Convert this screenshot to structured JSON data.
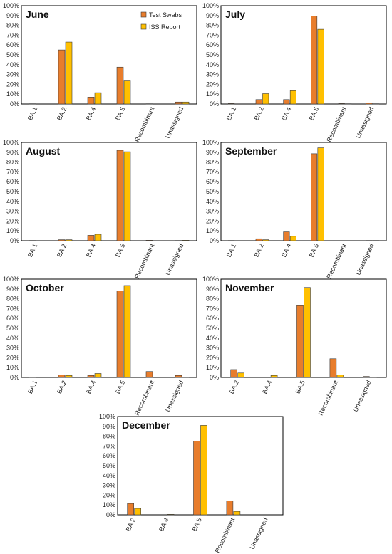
{
  "colors": {
    "test_swabs": "#E87D2C",
    "iss_report": "#FFC000",
    "bar_stroke": "#3a3a3a",
    "frame": "#000000"
  },
  "chart_data": [
    {
      "type": "bar",
      "title": "June",
      "ylim": [
        0,
        100
      ],
      "y_ticks": [
        "0%",
        "10%",
        "20%",
        "30%",
        "40%",
        "50%",
        "60%",
        "70%",
        "80%",
        "90%",
        "100%"
      ],
      "categories": [
        "BA.1",
        "BA.2",
        "BA.4",
        "BA.5",
        "Recombinant",
        "Unassigned"
      ],
      "series": [
        {
          "name": "Test Swabs",
          "values": [
            0.3,
            55,
            7,
            37.5,
            0.3,
            2
          ]
        },
        {
          "name": "ISS Report",
          "values": [
            0,
            63,
            11.5,
            23.5,
            0,
            2
          ]
        }
      ],
      "legend": {
        "placement": "top-right",
        "entries": [
          "Test Swabs",
          "ISS Report"
        ]
      }
    },
    {
      "type": "bar",
      "title": "July",
      "ylim": [
        0,
        100
      ],
      "y_ticks": [
        "0%",
        "10%",
        "20%",
        "30%",
        "40%",
        "50%",
        "60%",
        "70%",
        "80%",
        "90%",
        "100%"
      ],
      "categories": [
        "BA.1",
        "BA.2",
        "BA.4",
        "BA.5",
        "Recombinant",
        "Unassigned"
      ],
      "series": [
        {
          "name": "Test Swabs",
          "values": [
            0.5,
            4.5,
            4.5,
            89.5,
            0.5,
            1
          ]
        },
        {
          "name": "ISS Report",
          "values": [
            0,
            10.5,
            13.5,
            76,
            0.3,
            0.3
          ]
        }
      ]
    },
    {
      "type": "bar",
      "title": "August",
      "ylim": [
        0,
        100
      ],
      "y_ticks": [
        "0%",
        "10%",
        "20%",
        "30%",
        "40%",
        "50%",
        "60%",
        "70%",
        "80%",
        "90%",
        "100%"
      ],
      "categories": [
        "BA.1",
        "BA.2",
        "BA.4",
        "BA.5",
        "Recombinant",
        "Unassigned"
      ],
      "series": [
        {
          "name": "Test Swabs",
          "values": [
            0.3,
            1,
            5.5,
            92,
            0.5,
            0.3
          ]
        },
        {
          "name": "ISS Report",
          "values": [
            0,
            1,
            6.5,
            90.5,
            0,
            0.5
          ]
        }
      ]
    },
    {
      "type": "bar",
      "title": "September",
      "ylim": [
        0,
        100
      ],
      "y_ticks": [
        "0%",
        "10%",
        "20%",
        "30%",
        "40%",
        "50%",
        "60%",
        "70%",
        "80%",
        "90%",
        "100%"
      ],
      "categories": [
        "BA.1",
        "BA.2",
        "BA.4",
        "BA.5",
        "Recombinant",
        "Unassigned"
      ],
      "series": [
        {
          "name": "Test Swabs",
          "values": [
            0.3,
            2,
            9,
            88.5,
            0,
            0.3
          ]
        },
        {
          "name": "ISS Report",
          "values": [
            0,
            1,
            4.5,
            94.5,
            0,
            0.3
          ]
        }
      ]
    },
    {
      "type": "bar",
      "title": "October",
      "ylim": [
        0,
        100
      ],
      "y_ticks": [
        "0%",
        "10%",
        "20%",
        "30%",
        "40%",
        "50%",
        "60%",
        "70%",
        "80%",
        "90%",
        "100%"
      ],
      "categories": [
        "BA.1",
        "BA.2",
        "BA.4",
        "BA.5",
        "Recombinant",
        "Unassigned"
      ],
      "series": [
        {
          "name": "Test Swabs",
          "values": [
            0.3,
            2.5,
            2,
            88,
            6,
            2
          ]
        },
        {
          "name": "ISS Report",
          "values": [
            0,
            2,
            4,
            93.5,
            0,
            0.3
          ]
        }
      ]
    },
    {
      "type": "bar",
      "title": "November",
      "ylim": [
        0,
        100
      ],
      "y_ticks": [
        "0%",
        "10%",
        "20%",
        "30%",
        "40%",
        "50%",
        "60%",
        "70%",
        "80%",
        "90%",
        "100%"
      ],
      "categories": [
        "BA.2",
        "BA.4",
        "BA.5",
        "Recombinant",
        "Unassigned"
      ],
      "series": [
        {
          "name": "Test Swabs",
          "values": [
            8,
            0,
            73,
            19,
            1
          ]
        },
        {
          "name": "ISS Report",
          "values": [
            4.5,
            2,
            91.5,
            2.5,
            0.5
          ]
        }
      ]
    },
    {
      "type": "bar",
      "title": "December",
      "ylim": [
        0,
        100
      ],
      "y_ticks": [
        "0%",
        "10%",
        "20%",
        "30%",
        "40%",
        "50%",
        "60%",
        "70%",
        "80%",
        "90%",
        "100%"
      ],
      "categories": [
        "BA.2",
        "BA.4",
        "BA.5",
        "Recombinant",
        "Unassigned"
      ],
      "series": [
        {
          "name": "Test Swabs",
          "values": [
            11.5,
            0,
            75,
            14,
            0
          ]
        },
        {
          "name": "ISS Report",
          "values": [
            6.5,
            0.5,
            91,
            3.5,
            0
          ]
        }
      ]
    }
  ]
}
